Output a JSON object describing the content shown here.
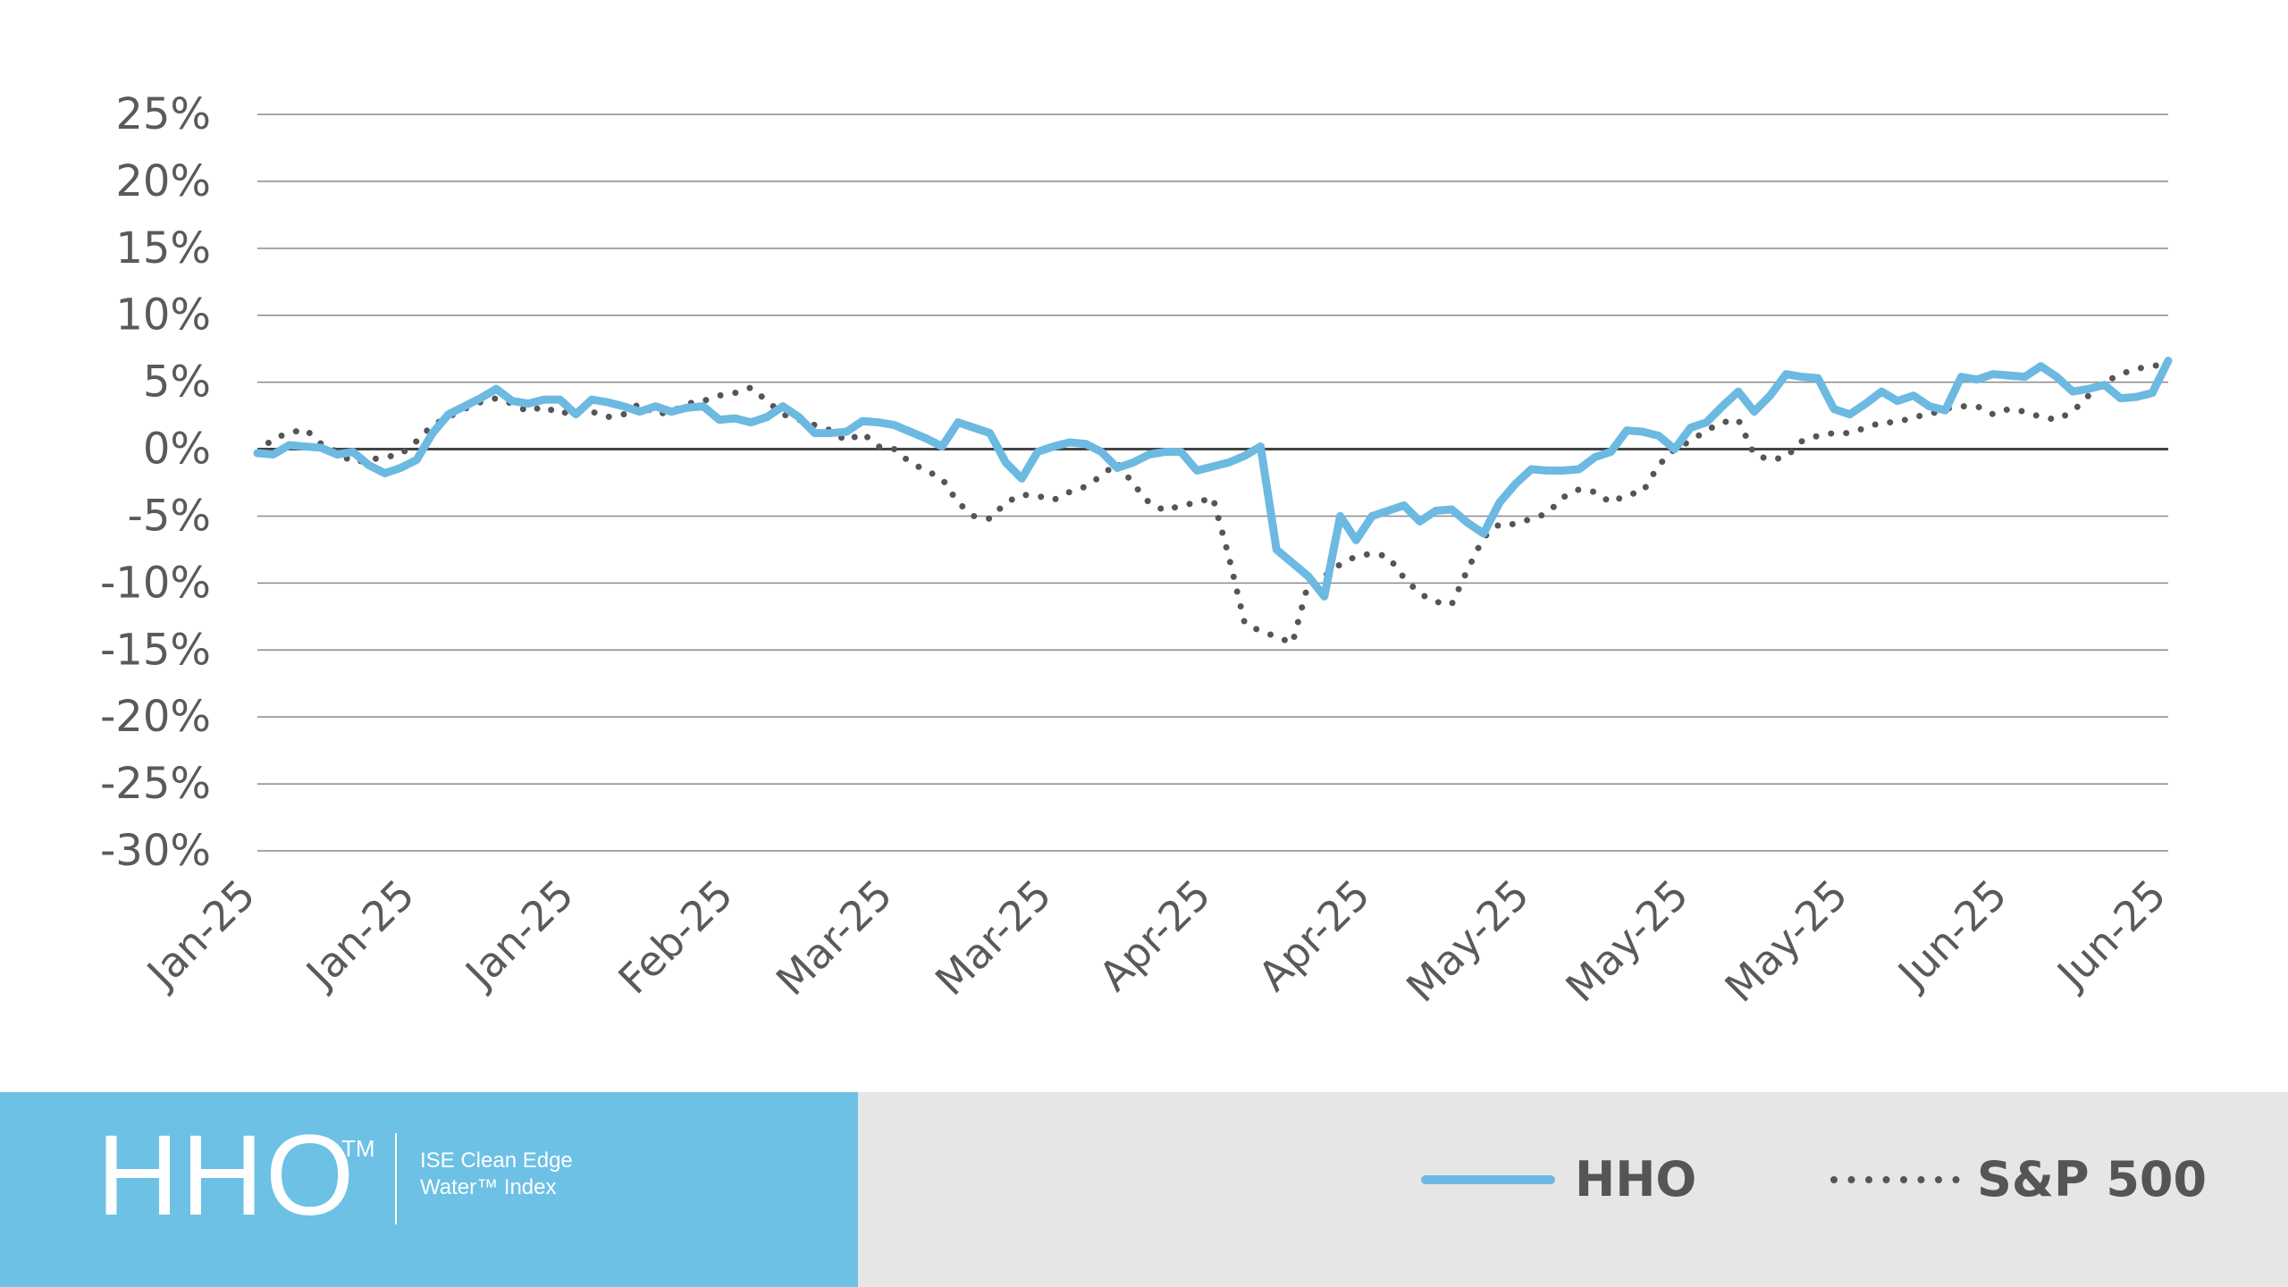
{
  "chart_data": {
    "type": "line",
    "x_tick_labels": [
      "Jan-25",
      "Jan-25",
      "Jan-25",
      "Feb-25",
      "Mar-25",
      "Mar-25",
      "Apr-25",
      "Apr-25",
      "May-25",
      "May-25",
      "May-25",
      "Jun-25",
      "Jun-25"
    ],
    "y_tick_labels": [
      "25%",
      "20%",
      "15%",
      "10%",
      "5%",
      "0%",
      "-5%",
      "-10%",
      "-15%",
      "-20%",
      "-25%",
      "-30%"
    ],
    "ylim": [
      -30,
      25
    ],
    "y_unit": "%",
    "grid": true,
    "legend_position": "bottom-right",
    "series": [
      {
        "name": "HHO",
        "color": "#6cb9e1",
        "style": "solid",
        "x": [
          0,
          1,
          2,
          3,
          4,
          5,
          6,
          7,
          8,
          9,
          10,
          11,
          12,
          13,
          14,
          15,
          16,
          17,
          18,
          19,
          20,
          21,
          22,
          23,
          24,
          25,
          26,
          27,
          28,
          29,
          30,
          31,
          32,
          33,
          34,
          35,
          36,
          37,
          38,
          39,
          40,
          41,
          42,
          43,
          44,
          45,
          46,
          47,
          48,
          49,
          50,
          51,
          52,
          53,
          54,
          55,
          56,
          57,
          58,
          59,
          60,
          61,
          62,
          63,
          64,
          65,
          66,
          67,
          68,
          69,
          70,
          71,
          72,
          73,
          74,
          75,
          76,
          77,
          78,
          79,
          80,
          81,
          82,
          83,
          84,
          85,
          86,
          87,
          88,
          89,
          90,
          91,
          92,
          93,
          94,
          95,
          96,
          97,
          98,
          99,
          100,
          101,
          102,
          103,
          104,
          105,
          106,
          107,
          108,
          109,
          110,
          111,
          112,
          113,
          114,
          115,
          116,
          117,
          118,
          119,
          120
        ],
        "values": [
          -0.3,
          -0.4,
          0.3,
          0.2,
          0.1,
          -0.4,
          -0.2,
          -1.2,
          -1.8,
          -1.4,
          -0.8,
          1.2,
          2.6,
          3.2,
          3.8,
          4.5,
          3.6,
          3.4,
          3.7,
          3.7,
          2.6,
          3.7,
          3.5,
          3.2,
          2.8,
          3.2,
          2.8,
          3.1,
          3.2,
          2.2,
          2.3,
          2.0,
          2.4,
          3.2,
          2.4,
          1.2,
          1.2,
          1.3,
          2.1,
          2.0,
          1.8,
          1.3,
          0.8,
          0.2,
          2.0,
          1.6,
          1.2,
          -1.0,
          -2.2,
          -0.2,
          0.2,
          0.5,
          0.4,
          -0.2,
          -1.4,
          -1.0,
          -0.4,
          -0.2,
          -0.2,
          -1.6,
          -1.3,
          -1.0,
          -0.5,
          0.2,
          -7.5,
          -8.5,
          -9.5,
          -11.0,
          -5.0,
          -6.8,
          -5.0,
          -4.6,
          -4.2,
          -5.4,
          -4.6,
          -4.5,
          -5.5,
          -6.3,
          -4.0,
          -2.6,
          -1.5,
          -1.6,
          -1.6,
          -1.5,
          -0.6,
          -0.2,
          1.4,
          1.3,
          1.0,
          0.0,
          1.6,
          2.0,
          3.2,
          4.3,
          2.8,
          4.0,
          5.6,
          5.4,
          5.3,
          3.0,
          2.6,
          3.4,
          4.3,
          3.6,
          4.0,
          3.2,
          2.9,
          5.4,
          5.2,
          5.6,
          5.5,
          5.4,
          6.2,
          5.4,
          4.3,
          4.5,
          4.8,
          3.8,
          3.9,
          4.2,
          6.6
        ]
      },
      {
        "name": "S&P 500",
        "color": "#555555",
        "style": "dotted",
        "x": [
          0,
          1,
          2,
          3,
          4,
          5,
          6,
          7,
          8,
          9,
          10,
          11,
          12,
          13,
          14,
          15,
          16,
          17,
          18,
          19,
          20,
          21,
          22,
          23,
          24,
          25,
          26,
          27,
          28,
          29,
          30,
          31,
          32,
          33,
          34,
          35,
          36,
          37,
          38,
          39,
          40,
          41,
          42,
          43,
          44,
          45,
          46,
          47,
          48,
          49,
          50,
          51,
          52,
          53,
          54,
          55,
          56,
          57,
          58,
          59,
          60,
          61,
          62,
          63,
          64,
          65,
          66,
          67,
          68,
          69,
          70,
          71,
          72,
          73,
          74,
          75,
          76,
          77,
          78,
          79,
          80,
          81,
          82,
          83,
          84,
          85,
          86,
          87,
          88,
          89,
          90,
          91,
          92,
          93,
          94,
          95,
          96,
          97,
          98,
          99,
          100,
          101,
          102,
          103,
          104,
          105,
          106,
          107,
          108,
          109,
          110,
          111,
          112,
          113,
          114,
          115,
          116,
          117,
          118,
          119,
          120
        ],
        "values": [
          -0.3,
          0.8,
          1.2,
          1.5,
          0.4,
          -0.2,
          -1.0,
          -0.8,
          -0.6,
          -0.4,
          0.6,
          1.8,
          2.4,
          3.0,
          3.5,
          3.8,
          3.4,
          2.8,
          3.2,
          2.6,
          3.0,
          2.8,
          2.4,
          2.6,
          3.4,
          2.6,
          2.8,
          3.4,
          3.6,
          4.0,
          4.2,
          4.6,
          3.6,
          2.6,
          2.2,
          1.8,
          1.4,
          0.6,
          1.2,
          0.2,
          0.0,
          -1.0,
          -1.6,
          -2.2,
          -4.0,
          -5.0,
          -5.2,
          -4.0,
          -3.4,
          -3.5,
          -3.8,
          -3.2,
          -2.8,
          -2.0,
          -1.0,
          -2.6,
          -4.0,
          -4.6,
          -4.2,
          -4.0,
          -3.6,
          -8.0,
          -13.0,
          -13.6,
          -14.0,
          -14.5,
          -10.0,
          -9.5,
          -8.6,
          -8.0,
          -7.8,
          -8.0,
          -9.6,
          -10.8,
          -11.4,
          -11.6,
          -9.0,
          -6.6,
          -5.6,
          -5.6,
          -5.2,
          -4.8,
          -3.6,
          -3.0,
          -3.2,
          -4.0,
          -3.4,
          -3.2,
          -1.2,
          0.0,
          0.6,
          1.4,
          2.0,
          2.2,
          -0.4,
          -0.8,
          -0.6,
          0.6,
          1.0,
          1.2,
          1.2,
          1.6,
          2.0,
          2.0,
          2.4,
          2.6,
          3.0,
          3.2,
          3.2,
          2.6,
          3.0,
          2.8,
          2.4,
          2.2,
          2.8,
          4.0,
          5.0,
          5.6,
          6.0,
          6.2,
          6.4
        ]
      }
    ]
  },
  "footer": {
    "brand": "HHO",
    "trademark": "TM",
    "subtitle": "ISE Clean Edge Water™ Index"
  },
  "legend": {
    "items": [
      {
        "label": "HHO",
        "color": "#6cb9e1",
        "style": "solid"
      },
      {
        "label": "S&P 500",
        "color": "#555555",
        "style": "dotted"
      }
    ]
  }
}
